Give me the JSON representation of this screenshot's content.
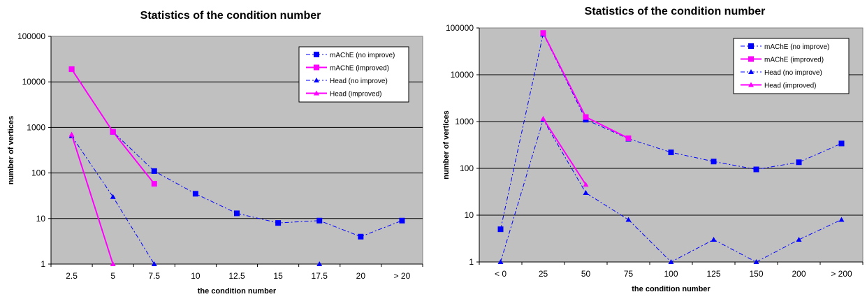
{
  "chart_data": [
    {
      "type": "line",
      "title": "Statistics of the condition number",
      "xlabel": "the condition number",
      "ylabel": "number of vertices",
      "yscale": "log",
      "ylim": [
        1,
        100000
      ],
      "yticks": [
        "1",
        "10",
        "100",
        "1000",
        "10000",
        "100000"
      ],
      "categories": [
        "2.5",
        "5",
        "7.5",
        "10",
        "12.5",
        "15",
        "17.5",
        "20",
        "> 20"
      ],
      "grid": "horizontal",
      "legend": "top-right",
      "series": [
        {
          "name": "mAChE (no improve)",
          "color": "#0000ff",
          "dash": "dashdot",
          "marker": "square",
          "values": [
            19000,
            800,
            110,
            35,
            13,
            8,
            9,
            4,
            9
          ]
        },
        {
          "name": "mAChE (improved)",
          "color": "#ff00ff",
          "dash": "solid",
          "marker": "square",
          "values": [
            19000,
            800,
            58,
            null,
            null,
            null,
            null,
            null,
            null
          ]
        },
        {
          "name": "Head (no improve)",
          "color": "#0000ff",
          "dash": "dashdot",
          "marker": "triangle",
          "values": [
            650,
            30,
            1,
            null,
            null,
            null,
            1,
            null,
            null
          ]
        },
        {
          "name": "Head (improved)",
          "color": "#ff00ff",
          "dash": "solid",
          "marker": "triangle",
          "values": [
            700,
            1,
            null,
            null,
            null,
            null,
            null,
            null,
            null
          ]
        }
      ]
    },
    {
      "type": "line",
      "title": "Statistics of the condition number",
      "xlabel": "the condition number",
      "ylabel": "number of vertices",
      "yscale": "log",
      "ylim": [
        1,
        100000
      ],
      "yticks": [
        "1",
        "10",
        "100",
        "1000",
        "10000",
        "100000"
      ],
      "categories": [
        "< 0",
        "25",
        "50",
        "75",
        "100",
        "125",
        "150",
        "200",
        "> 200"
      ],
      "grid": "horizontal",
      "legend": "top-right",
      "series": [
        {
          "name": "mAChE (no improve)",
          "color": "#0000ff",
          "dash": "dashdot",
          "marker": "square",
          "values": [
            5,
            75000,
            1100,
            430,
            220,
            140,
            95,
            135,
            340
          ]
        },
        {
          "name": "mAChE (improved)",
          "color": "#ff00ff",
          "dash": "solid",
          "marker": "square",
          "values": [
            null,
            78000,
            1250,
            440,
            null,
            null,
            null,
            null,
            null
          ]
        },
        {
          "name": "Head (no improve)",
          "color": "#0000ff",
          "dash": "dashdot",
          "marker": "triangle",
          "values": [
            1,
            1100,
            30,
            8,
            1,
            3,
            1,
            3,
            8
          ]
        },
        {
          "name": "Head (improved)",
          "color": "#ff00ff",
          "dash": "solid",
          "marker": "triangle",
          "values": [
            null,
            1150,
            45,
            null,
            null,
            null,
            null,
            null,
            null
          ]
        }
      ]
    }
  ]
}
